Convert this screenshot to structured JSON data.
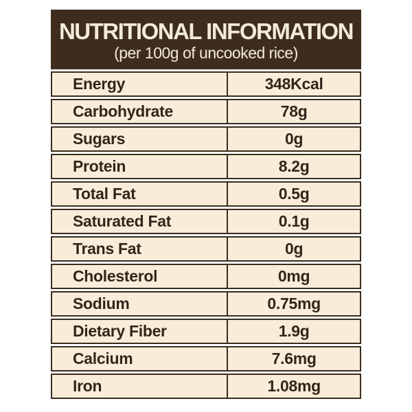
{
  "label": {
    "title": "NUTRITIONAL INFORMATION",
    "subtitle": "(per 100g of uncooked rice)"
  },
  "table": {
    "rows": [
      {
        "nutrient": "Energy",
        "amount": "348Kcal"
      },
      {
        "nutrient": "Carbohydrate",
        "amount": "78g"
      },
      {
        "nutrient": "Sugars",
        "amount": "0g"
      },
      {
        "nutrient": "Protein",
        "amount": "8.2g"
      },
      {
        "nutrient": "Total Fat",
        "amount": "0.5g"
      },
      {
        "nutrient": "Saturated Fat",
        "amount": "0.1g"
      },
      {
        "nutrient": "Trans Fat",
        "amount": "0g"
      },
      {
        "nutrient": "Cholesterol",
        "amount": "0mg"
      },
      {
        "nutrient": "Sodium",
        "amount": "0.75mg"
      },
      {
        "nutrient": "Dietary Fiber",
        "amount": "1.9g"
      },
      {
        "nutrient": "Calcium",
        "amount": "7.6mg"
      },
      {
        "nutrient": "Iron",
        "amount": "1.08mg"
      }
    ]
  },
  "colors": {
    "header_bg": "#3e2d1e",
    "header_text": "#f3ead7",
    "cell_bg": "#f9edda",
    "cell_text": "#35241a",
    "border": "#3a2b1c",
    "page_bg": "#ffffff"
  }
}
